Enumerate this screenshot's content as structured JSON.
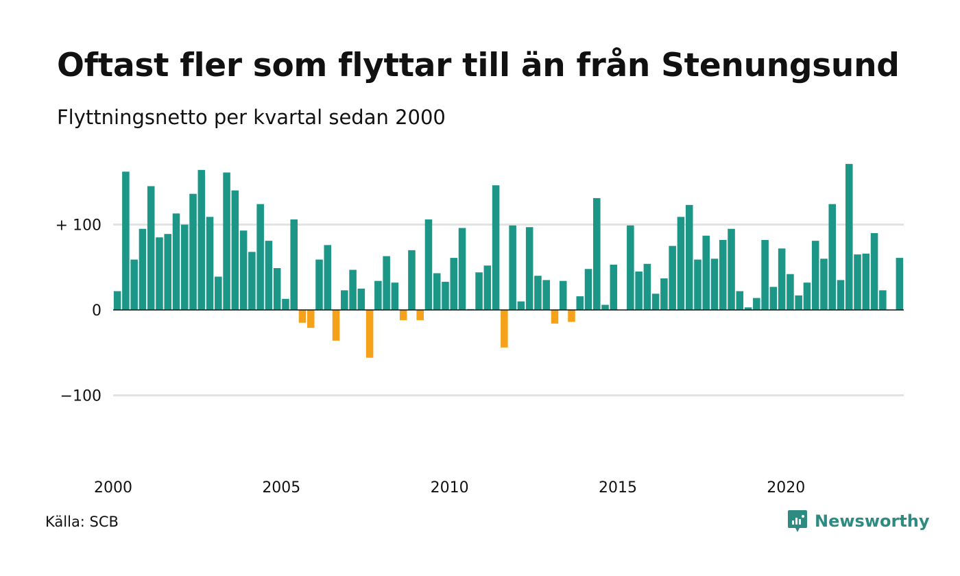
{
  "chart_data": {
    "type": "bar",
    "title": "Oftast fler som flyttar till än från Stenungsund",
    "subtitle": "Flyttningsnetto per kvartal sedan 2000",
    "xlabel": "",
    "ylabel": "",
    "x_ticks": [
      "2000",
      "2005",
      "2010",
      "2015",
      "2020"
    ],
    "x_tick_years": [
      2000,
      2005,
      2010,
      2015,
      2020
    ],
    "y_ticks": [
      100,
      0,
      -100
    ],
    "y_tick_labels": [
      "+ 100",
      "0",
      "−100"
    ],
    "ylim": [
      -190,
      190
    ],
    "grid": true,
    "start_year": 2000,
    "quarters_per_year": 4,
    "positive_color": "#1b9687",
    "negative_color": "#f5a21a",
    "values": [
      22,
      162,
      59,
      95,
      145,
      85,
      89,
      113,
      100,
      136,
      164,
      109,
      39,
      161,
      140,
      93,
      68,
      124,
      81,
      49,
      13,
      106,
      -15,
      -21,
      59,
      76,
      -36,
      23,
      47,
      25,
      -56,
      34,
      63,
      32,
      -12,
      70,
      -12,
      106,
      43,
      33,
      61,
      96,
      1,
      44,
      52,
      146,
      -44,
      99,
      10,
      97,
      40,
      35,
      -16,
      34,
      -14,
      16,
      48,
      131,
      6,
      53,
      0,
      99,
      45,
      54,
      19,
      37,
      75,
      109,
      123,
      59,
      87,
      60,
      82,
      95,
      22,
      3,
      14,
      82,
      27,
      72,
      42,
      17,
      32,
      81,
      60,
      124,
      35,
      171,
      65,
      66,
      90,
      23,
      0,
      61
    ]
  },
  "footer": {
    "source": "Källa: SCB",
    "brand": "Newsworthy",
    "brand_icon": "newsworthy-logo-icon",
    "brand_color": "#2e8b81"
  }
}
